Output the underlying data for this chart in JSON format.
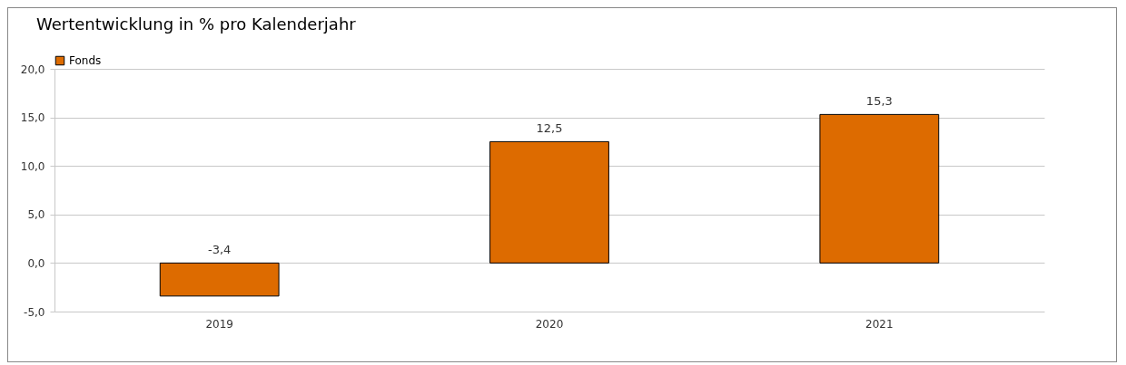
{
  "chart_data": {
    "type": "bar",
    "title": "Wertentwicklung in % pro Kalenderjahr",
    "categories": [
      "2019",
      "2020",
      "2021"
    ],
    "series": [
      {
        "name": "Fonds",
        "color": "#dd6b00",
        "values": [
          -3.4,
          12.5,
          15.3
        ],
        "value_labels": [
          "-3,4",
          "12,5",
          "15,3"
        ]
      }
    ],
    "ylim": [
      -5,
      20
    ],
    "yticks": [
      {
        "value": -5,
        "label": "-5,0"
      },
      {
        "value": 0,
        "label": "0,0"
      },
      {
        "value": 5,
        "label": "5,0"
      },
      {
        "value": 10,
        "label": "10,0"
      },
      {
        "value": 15,
        "label": "15,0"
      },
      {
        "value": 20,
        "label": "20,0"
      }
    ],
    "grid": "y",
    "legend": "top"
  }
}
